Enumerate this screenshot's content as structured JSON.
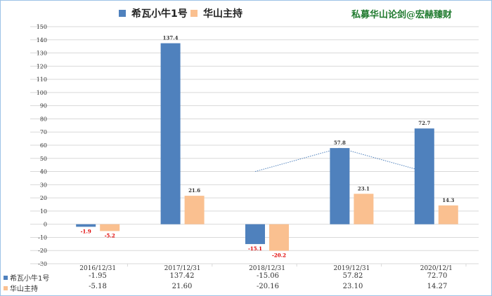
{
  "brand": "私募华山论剑@宏赫臻财",
  "colors": {
    "series1": "#4f81bd",
    "series2": "#fac090",
    "pos_label": "#333333",
    "neg_label": "#e00000",
    "trend": "#4f81bd"
  },
  "chart_data": {
    "type": "bar",
    "categories": [
      "2016/12/31",
      "2017/12/31",
      "2018/12/31",
      "2019/12/31",
      "2020/12/1"
    ],
    "series": [
      {
        "name": "希瓦小牛1号",
        "values": [
          -1.95,
          137.42,
          -15.06,
          57.82,
          72.7
        ],
        "data_labels": [
          "-1.9",
          "137.4",
          "-15.1",
          "57.8",
          "72.7"
        ],
        "table_values": [
          "-1.95",
          "137.42",
          "-15.06",
          "57.82",
          "72.70"
        ]
      },
      {
        "name": "华山主持",
        "values": [
          -5.18,
          21.6,
          -20.16,
          23.1,
          14.27
        ],
        "data_labels": [
          "-5.2",
          "21.6",
          "-20.2",
          "23.1",
          "14.3"
        ],
        "table_values": [
          "-5.18",
          "21.60",
          "-20.16",
          "23.10",
          "14.27"
        ]
      }
    ],
    "ylim": [
      -30,
      150
    ],
    "yticks": [
      "-30",
      "-20",
      "-10",
      "0",
      "10",
      "20",
      "30",
      "40",
      "50",
      "60",
      "70",
      "80",
      "90",
      "100",
      "110",
      "120",
      "130",
      "140",
      "150"
    ],
    "grid": true,
    "legend": "top",
    "data_table": true,
    "trendline": {
      "series": "希瓦小牛1号",
      "x_from": "2018/12/31",
      "x_to": "2020/12/1"
    }
  }
}
